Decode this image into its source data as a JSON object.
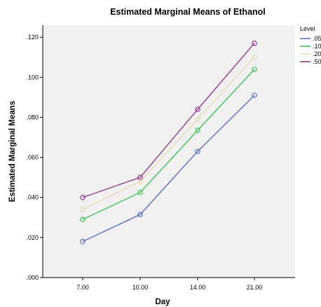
{
  "chart_data": {
    "type": "line",
    "title": "Estimated Marginal Means of Ethanol",
    "xlabel": "Day",
    "ylabel": "Estimated Marginal Means",
    "categories": [
      "7.00",
      "10.00",
      "14.00",
      "21.00"
    ],
    "ylim": [
      0,
      0.126
    ],
    "yticks": [
      ".000",
      ".020",
      ".040",
      ".060",
      ".080",
      ".100",
      ".120"
    ],
    "ytick_values": [
      0,
      0.02,
      0.04,
      0.06,
      0.08,
      0.1,
      0.12
    ],
    "grid": false,
    "background": "#f0f0f0",
    "legend": {
      "title": "Level",
      "position": "right"
    },
    "series": [
      {
        "name": ".05",
        "color": "#5b6fb8",
        "values": [
          0.018,
          0.0315,
          0.063,
          0.091
        ]
      },
      {
        "name": ".10",
        "color": "#3ec05a",
        "values": [
          0.029,
          0.0425,
          0.0735,
          0.104
        ]
      },
      {
        "name": ".20",
        "color": "#e6dcb4",
        "values": [
          0.034,
          0.048,
          0.079,
          0.11
        ]
      },
      {
        "name": ".50",
        "color": "#8e3c8c",
        "values": [
          0.04,
          0.05,
          0.084,
          0.117
        ]
      }
    ]
  }
}
